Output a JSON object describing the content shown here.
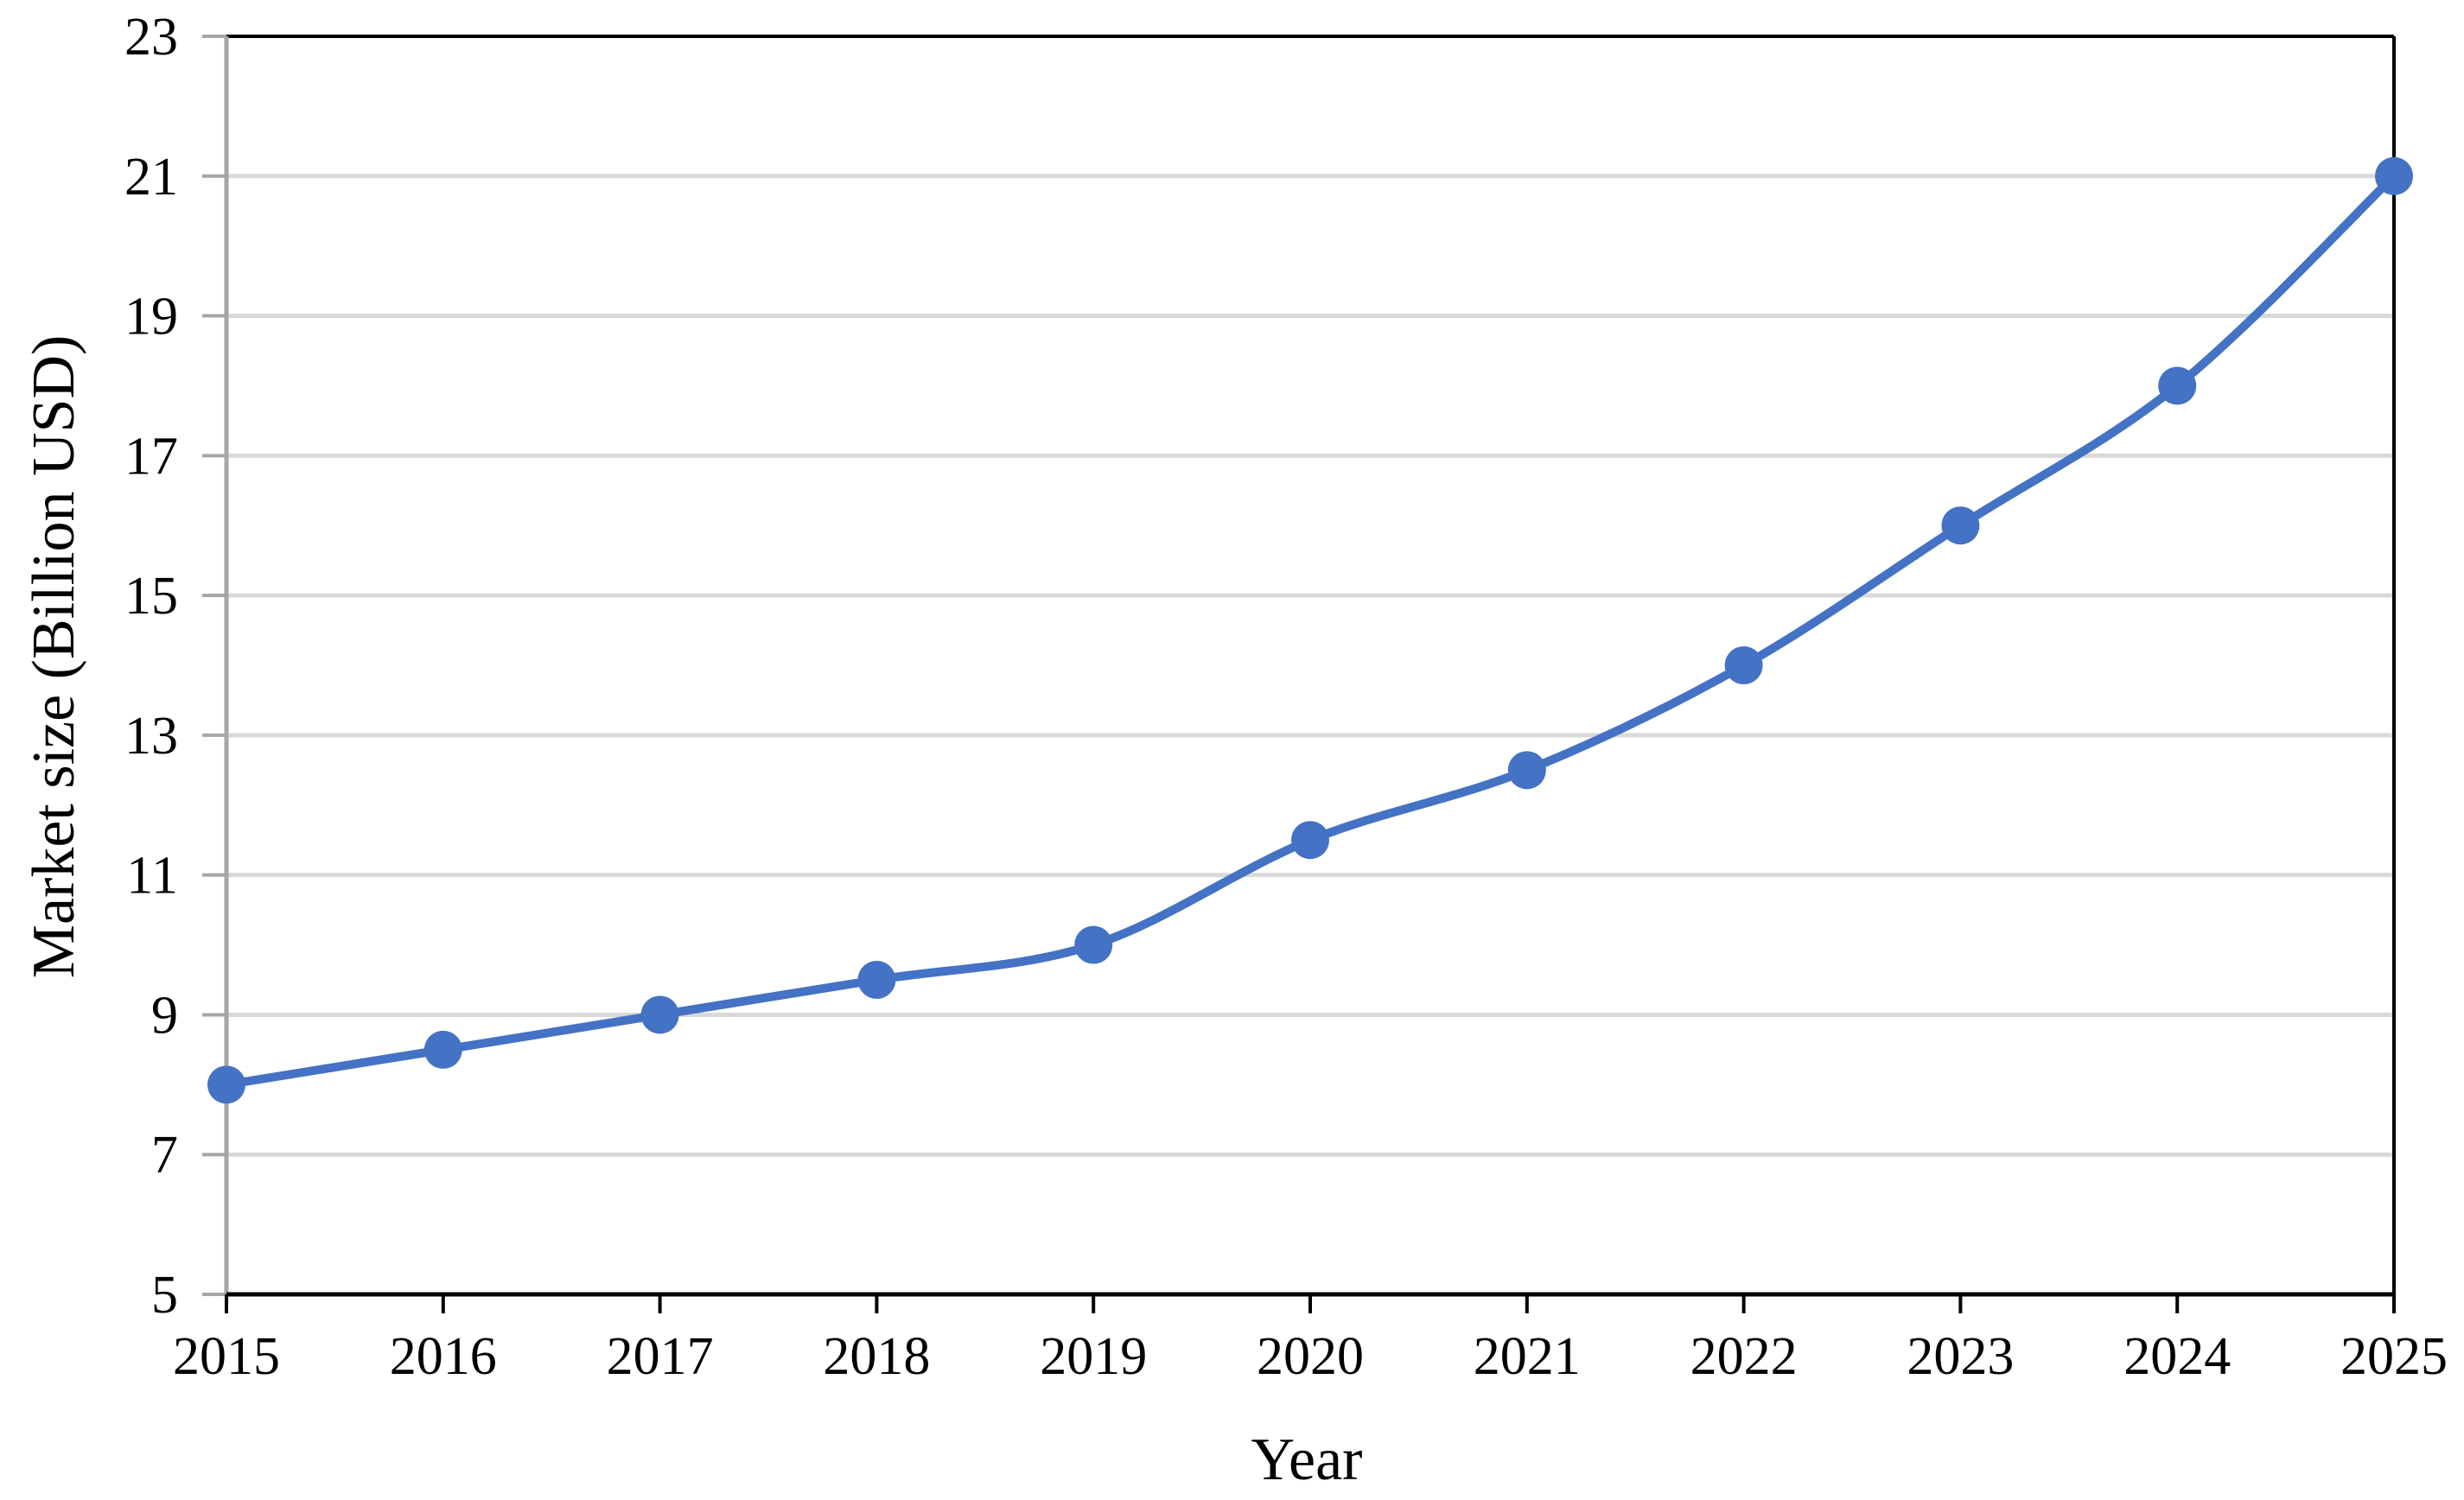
{
  "chart_data": {
    "type": "line",
    "title": "",
    "xlabel": "Year",
    "ylabel": "Market size (Billion USD)",
    "x": [
      "2015",
      "2016",
      "2017",
      "2018",
      "2019",
      "2020",
      "2021",
      "2022",
      "2023",
      "2024",
      "2025"
    ],
    "series": [
      {
        "values": [
          8,
          8.5,
          9,
          9.5,
          10,
          11.5,
          12.5,
          14,
          16,
          18,
          21
        ]
      }
    ],
    "ylim": [
      5,
      23
    ],
    "yticks": [
      "5",
      "7",
      "9",
      "11",
      "13",
      "15",
      "17",
      "19",
      "21",
      "23"
    ],
    "grid": true,
    "smooth": true,
    "legend": "none",
    "colors": {
      "series": "#4472C4",
      "grid": "#D9D9D9",
      "axis": "#A6A6A6",
      "frame": "#000000"
    }
  }
}
